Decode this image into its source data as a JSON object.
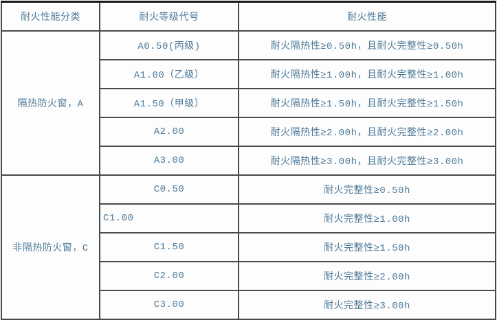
{
  "table": {
    "headers": {
      "category": "耐火性能分类",
      "code": "耐火等级代号",
      "performance": "耐火性能"
    },
    "sections": [
      {
        "category": "隔热防火窗，A",
        "rows": [
          {
            "code": "A0.50(丙级)",
            "performance": "耐火隔热性≥0.50h，且耐火完整性≥0.50h"
          },
          {
            "code": "A1.00（乙级）",
            "performance": "耐火隔热性≥1.00h，且耐火完整性≥1.00h"
          },
          {
            "code": "A1.50（甲级）",
            "performance": "耐火隔热性≥1.50h，且耐火完整性≥1.50h"
          },
          {
            "code": "A2.00",
            "performance": "耐火隔热性≥2.00h，且耐火完整性≥2.00h"
          },
          {
            "code": "A3.00",
            "performance": "耐火隔热性≥3.00h，且耐火完整性≥3.00h"
          }
        ]
      },
      {
        "category": "非隔热防火窗，C",
        "rows": [
          {
            "code": "C0.50",
            "performance": "耐火完整性≥0.50h"
          },
          {
            "code": "C1.00",
            "performance": "耐火完整性≥1.00h"
          },
          {
            "code": "C1.50",
            "performance": "耐火完整性≥1.50h"
          },
          {
            "code": "C2.00",
            "performance": "耐火完整性≥2.00h"
          },
          {
            "code": "C3.00",
            "performance": "耐火完整性≥3.00h"
          }
        ]
      }
    ],
    "colors": {
      "text": "#4d7a99",
      "grid_border": "#494949",
      "outer_top_border": "#171717",
      "cell_background": "#fdfdfd"
    }
  }
}
